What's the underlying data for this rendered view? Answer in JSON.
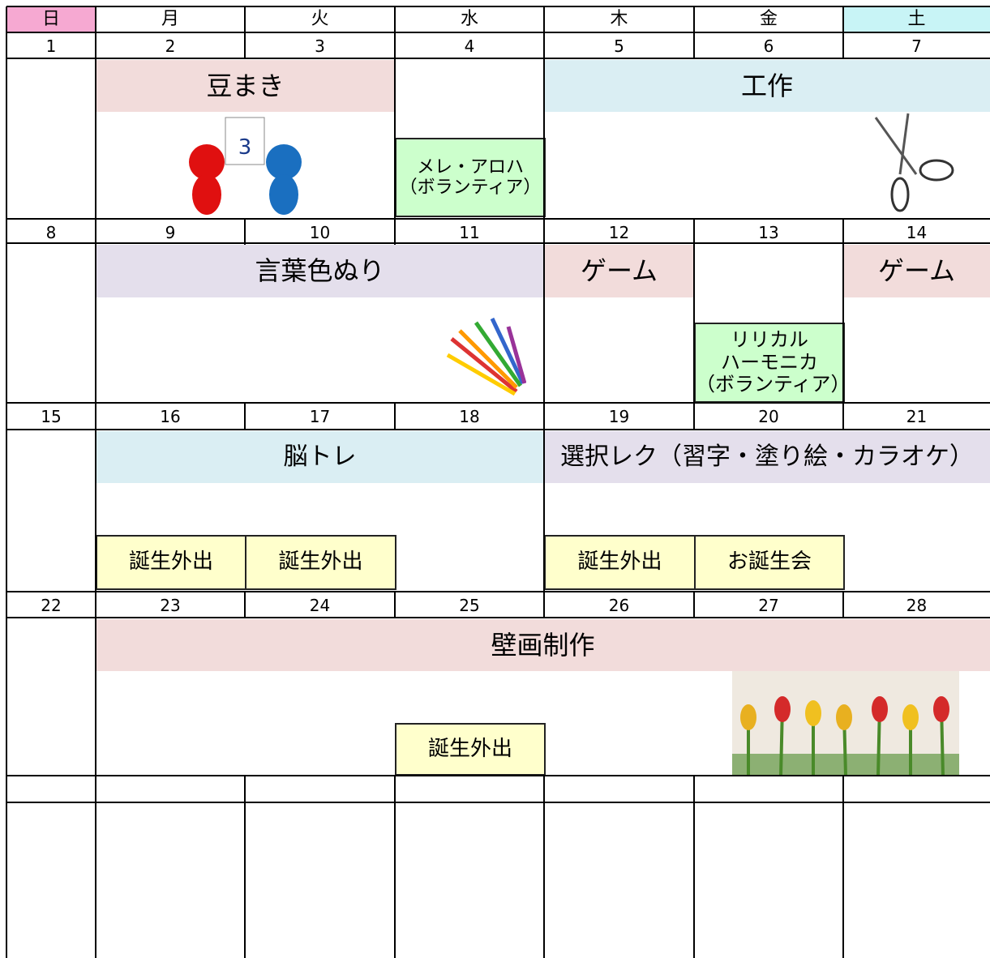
{
  "weekdays": [
    "日",
    "月",
    "火",
    "水",
    "木",
    "金",
    "土"
  ],
  "weeks": [
    {
      "dates": [
        1,
        2,
        3,
        4,
        5,
        6,
        7
      ],
      "events": [
        {
          "lines": [
            "豆まき"
          ]
        },
        {
          "lines": [
            "工作"
          ]
        },
        {
          "lines": [
            "メレ・アロハ",
            "（ボランティア）"
          ]
        }
      ]
    },
    {
      "dates": [
        8,
        9,
        10,
        11,
        12,
        13,
        14
      ],
      "events": [
        {
          "lines": [
            "言葉色ぬり"
          ]
        },
        {
          "lines": [
            "ゲーム"
          ]
        },
        {
          "lines": [
            "ゲーム"
          ]
        },
        {
          "lines": [
            "リリカル",
            "ハーモニカ",
            "（ボランティア）"
          ]
        }
      ]
    },
    {
      "dates": [
        15,
        16,
        17,
        18,
        19,
        20,
        21
      ],
      "events": [
        {
          "lines": [
            "脳トレ"
          ]
        },
        {
          "lines": [
            "選択レク（習字・塗り絵・カラオケ）"
          ]
        },
        {
          "lines": [
            "誕生外出"
          ]
        },
        {
          "lines": [
            "誕生外出"
          ]
        },
        {
          "lines": [
            "誕生外出"
          ]
        },
        {
          "lines": [
            "お誕生会"
          ]
        }
      ]
    },
    {
      "dates": [
        22,
        23,
        24,
        25,
        26,
        27,
        28
      ],
      "events": [
        {
          "lines": [
            "壁画制作"
          ]
        },
        {
          "lines": [
            "誕生外出"
          ]
        }
      ]
    }
  ]
}
